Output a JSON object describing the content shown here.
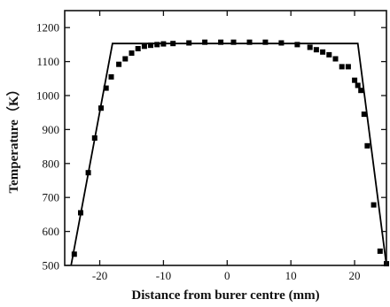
{
  "chart_data": {
    "type": "line",
    "title": "",
    "xlabel": "Distance from burer centre (mm)",
    "ylabel": "Temperature（K）",
    "xlim": [
      -25.5,
      25
    ],
    "ylim": [
      500,
      1250
    ],
    "x_ticks": [
      -20,
      -10,
      0,
      10,
      20
    ],
    "x_tick_labels": [
      "-20",
      "-10",
      "0",
      "10",
      "20"
    ],
    "y_ticks": [
      500,
      600,
      700,
      800,
      900,
      1000,
      1100,
      1200
    ],
    "y_tick_labels": [
      "500",
      "600",
      "700",
      "800",
      "900",
      "1000",
      "1100",
      "1200"
    ],
    "grid": false,
    "series": [
      {
        "type": "line",
        "color": "#000000",
        "x": [
          -24.5,
          -18,
          20.5,
          25
        ],
        "y": [
          500,
          1153,
          1153,
          500
        ]
      },
      {
        "type": "scatter",
        "marker": "square",
        "color": "#000000",
        "x": [
          -24.0,
          -23.0,
          -21.8,
          -20.8,
          -19.8,
          -19.0,
          -18.2,
          -17.0,
          -16.0,
          -15.0,
          -14.0,
          -13.0,
          -12.0,
          -11.0,
          -10.0,
          -8.5,
          -6.0,
          -3.5,
          -1.0,
          1.0,
          3.5,
          6.0,
          8.5,
          11.0,
          13.0,
          14.0,
          15.0,
          16.0,
          17.0,
          18.0,
          19.0,
          20.0,
          20.5,
          21.0,
          21.5,
          22.0,
          23.0,
          24.0,
          25.0
        ],
        "y": [
          533,
          655,
          773,
          875,
          963,
          1022,
          1055,
          1092,
          1108,
          1125,
          1138,
          1145,
          1148,
          1150,
          1152,
          1153,
          1155,
          1157,
          1157,
          1157,
          1157,
          1157,
          1155,
          1150,
          1142,
          1135,
          1128,
          1120,
          1108,
          1085,
          1085,
          1045,
          1030,
          1015,
          945,
          852,
          678,
          542,
          505
        ]
      }
    ]
  }
}
